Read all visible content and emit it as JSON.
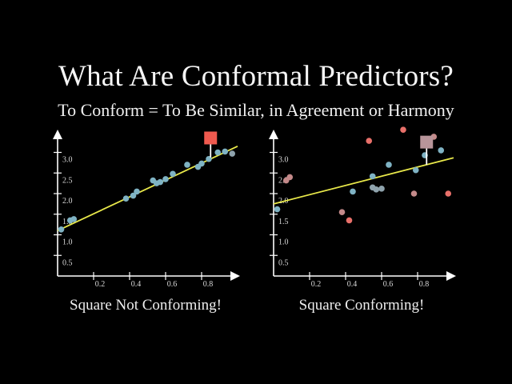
{
  "title": "What Are Conformal Predictors?",
  "subtitle": "To Conform = To Be Similar, in Agreement or Harmony",
  "colors": {
    "background": "#000000",
    "axis": "#ffffff",
    "regression_line": "#e8e84a",
    "point_blue": "#7fb3c4",
    "point_gray": "#8fa3ad",
    "point_red": "#e8706a",
    "point_pink": "#c48a8a",
    "square_left": "#f05a4f",
    "square_right": "#b8959a"
  },
  "chart_data": [
    {
      "type": "scatter",
      "title": "",
      "caption": "Square Not Conforming!",
      "xlabel": "",
      "ylabel": "",
      "x_ticks": [
        "0.2",
        "0.4",
        "0.6",
        "0.8"
      ],
      "y_ticks": [
        "0.5",
        "1.0",
        "1.5",
        "2.0",
        "2.5",
        "3.0"
      ],
      "xlim": [
        0,
        1.0
      ],
      "ylim": [
        0,
        3.5
      ],
      "grid": false,
      "regression_line": {
        "x0": 0.0,
        "y0": 1.1,
        "x1": 1.0,
        "y1": 3.15
      },
      "points": [
        {
          "x": 0.02,
          "y": 1.13,
          "color": "blue"
        },
        {
          "x": 0.07,
          "y": 1.35,
          "color": "blue"
        },
        {
          "x": 0.09,
          "y": 1.38,
          "color": "blue"
        },
        {
          "x": 0.38,
          "y": 1.88,
          "color": "blue"
        },
        {
          "x": 0.42,
          "y": 1.95,
          "color": "blue"
        },
        {
          "x": 0.44,
          "y": 2.05,
          "color": "blue"
        },
        {
          "x": 0.53,
          "y": 2.32,
          "color": "blue"
        },
        {
          "x": 0.55,
          "y": 2.25,
          "color": "blue"
        },
        {
          "x": 0.57,
          "y": 2.28,
          "color": "blue"
        },
        {
          "x": 0.6,
          "y": 2.35,
          "color": "blue"
        },
        {
          "x": 0.64,
          "y": 2.48,
          "color": "blue"
        },
        {
          "x": 0.72,
          "y": 2.7,
          "color": "blue"
        },
        {
          "x": 0.78,
          "y": 2.65,
          "color": "blue"
        },
        {
          "x": 0.8,
          "y": 2.73,
          "color": "blue"
        },
        {
          "x": 0.84,
          "y": 2.84,
          "color": "blue"
        },
        {
          "x": 0.89,
          "y": 3.0,
          "color": "blue"
        },
        {
          "x": 0.93,
          "y": 3.02,
          "color": "blue"
        },
        {
          "x": 0.97,
          "y": 2.97,
          "color": "gray"
        }
      ],
      "square": {
        "x": 0.85,
        "y": 3.35,
        "color": "red",
        "line_to_y": 2.88
      }
    },
    {
      "type": "scatter",
      "title": "",
      "caption": "Square Conforming!",
      "xlabel": "",
      "ylabel": "",
      "x_ticks": [
        "0.2",
        "0.4",
        "0.6",
        "0.8"
      ],
      "y_ticks": [
        "0.5",
        "1.0",
        "1.5",
        "2.0",
        "2.5",
        "3.0"
      ],
      "xlim": [
        0,
        1.0
      ],
      "ylim": [
        0,
        3.5
      ],
      "grid": false,
      "regression_line": {
        "x0": 0.0,
        "y0": 1.75,
        "x1": 1.0,
        "y1": 2.87
      },
      "points": [
        {
          "x": 0.02,
          "y": 1.62,
          "color": "blue"
        },
        {
          "x": 0.07,
          "y": 2.32,
          "color": "pink"
        },
        {
          "x": 0.09,
          "y": 2.4,
          "color": "pink"
        },
        {
          "x": 0.38,
          "y": 1.55,
          "color": "pink"
        },
        {
          "x": 0.42,
          "y": 1.35,
          "color": "red"
        },
        {
          "x": 0.44,
          "y": 2.05,
          "color": "blue"
        },
        {
          "x": 0.53,
          "y": 3.28,
          "color": "red"
        },
        {
          "x": 0.55,
          "y": 2.42,
          "color": "blue"
        },
        {
          "x": 0.55,
          "y": 2.15,
          "color": "gray"
        },
        {
          "x": 0.57,
          "y": 2.1,
          "color": "gray"
        },
        {
          "x": 0.6,
          "y": 2.12,
          "color": "gray"
        },
        {
          "x": 0.64,
          "y": 2.7,
          "color": "blue"
        },
        {
          "x": 0.72,
          "y": 3.55,
          "color": "red"
        },
        {
          "x": 0.78,
          "y": 2.0,
          "color": "pink"
        },
        {
          "x": 0.79,
          "y": 2.57,
          "color": "blue"
        },
        {
          "x": 0.84,
          "y": 2.93,
          "color": "blue"
        },
        {
          "x": 0.89,
          "y": 3.38,
          "color": "pink"
        },
        {
          "x": 0.93,
          "y": 3.05,
          "color": "blue"
        },
        {
          "x": 0.97,
          "y": 2.0,
          "color": "red"
        }
      ],
      "square": {
        "x": 0.85,
        "y": 3.25,
        "color": "pink",
        "line_to_y": 2.7
      }
    }
  ]
}
